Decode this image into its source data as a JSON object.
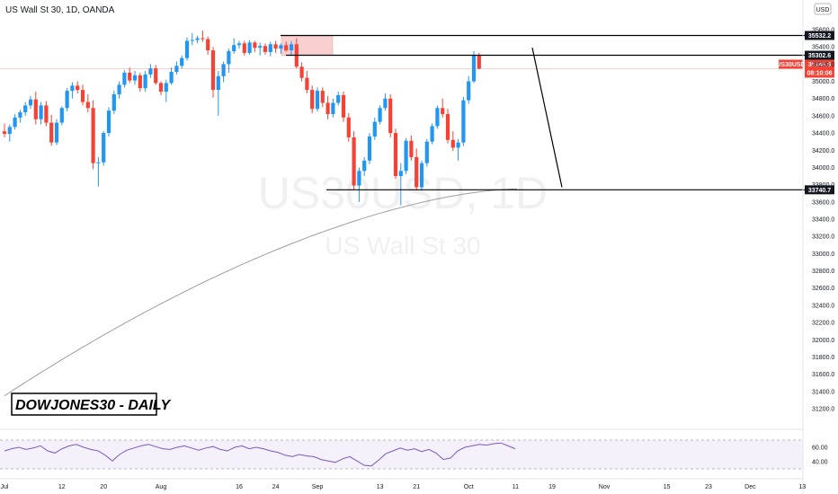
{
  "header": {
    "title": "US Wall St 30, 1D, OANDA",
    "currency": "USD"
  },
  "watermark": {
    "symbol": "US30USD, 1D",
    "name": "US Wall St 30"
  },
  "annotation": {
    "label": "DOWJONES30 - DAILY"
  },
  "colors": {
    "up": "#2196f3",
    "down": "#f44336",
    "line": "#000000",
    "sma": "#9e9e9e",
    "rsi": "#7e57c2",
    "zone": "#f8bbbb"
  },
  "chart_data": {
    "type": "candlestick",
    "y_range": [
      31000,
      35700
    ],
    "y_ticks": [
      31200,
      31400,
      31600,
      31800,
      32000,
      32200,
      32400,
      32600,
      32800,
      33000,
      33200,
      33400,
      33600,
      33800,
      34000,
      34200,
      34400,
      34600,
      34800,
      35000,
      35200,
      35400,
      35600
    ],
    "y_tick_labels": [
      "31200.0",
      "31400.0",
      "31600.0",
      "31800.0",
      "32000.0",
      "32200.0",
      "32400.0",
      "32600.0",
      "32800.0",
      "33000.0",
      "33200.0",
      "33400.0",
      "33600.0",
      "33800.0",
      "34000.0",
      "34200.0",
      "34400.0",
      "34600.0",
      "34800.0",
      "35000.0",
      "35200.0",
      "35400.0",
      "35600.0"
    ],
    "x_labels": [
      "Jul",
      "12",
      "20",
      "Aug",
      "16",
      "24",
      "Sep",
      "13",
      "21",
      "Oct",
      "11",
      "19",
      "Nov",
      "15",
      "23",
      "Dec",
      "13"
    ],
    "x_label_index": [
      0,
      11,
      19,
      30,
      45,
      52,
      60,
      72,
      79,
      89,
      98,
      105,
      115,
      127,
      135,
      143,
      153
    ],
    "ohlc": [
      [
        34420,
        34510,
        34350,
        34390
      ],
      [
        34390,
        34500,
        34300,
        34470
      ],
      [
        34470,
        34620,
        34440,
        34580
      ],
      [
        34580,
        34670,
        34520,
        34640
      ],
      [
        34640,
        34760,
        34600,
        34720
      ],
      [
        34720,
        34830,
        34680,
        34790
      ],
      [
        34790,
        34880,
        34500,
        34560
      ],
      [
        34560,
        34760,
        34500,
        34720
      ],
      [
        34720,
        34770,
        34480,
        34520
      ],
      [
        34520,
        34610,
        34250,
        34290
      ],
      [
        34290,
        34560,
        34260,
        34520
      ],
      [
        34520,
        34710,
        34490,
        34690
      ],
      [
        34690,
        34920,
        34650,
        34890
      ],
      [
        34890,
        34990,
        34800,
        34950
      ],
      [
        34950,
        35000,
        34860,
        34900
      ],
      [
        34900,
        34960,
        34720,
        34760
      ],
      [
        34760,
        34850,
        34640,
        34690
      ],
      [
        34690,
        34780,
        33980,
        34050
      ],
      [
        34050,
        34120,
        33780,
        34060
      ],
      [
        34060,
        34420,
        34020,
        34400
      ],
      [
        34400,
        34700,
        34360,
        34660
      ],
      [
        34660,
        34890,
        34620,
        34850
      ],
      [
        34850,
        35000,
        34800,
        34960
      ],
      [
        34960,
        35130,
        34930,
        35100
      ],
      [
        35100,
        35160,
        34980,
        35010
      ],
      [
        35010,
        35120,
        34960,
        35070
      ],
      [
        35070,
        35100,
        34880,
        34920
      ],
      [
        34920,
        35120,
        34880,
        35080
      ],
      [
        35080,
        35200,
        35040,
        35150
      ],
      [
        35150,
        35190,
        34960,
        34980
      ],
      [
        34980,
        35000,
        34840,
        34880
      ],
      [
        34880,
        35020,
        34760,
        34980
      ],
      [
        34980,
        35160,
        34960,
        35110
      ],
      [
        35110,
        35230,
        35080,
        35180
      ],
      [
        35180,
        35300,
        35150,
        35270
      ],
      [
        35270,
        35510,
        35240,
        35470
      ],
      [
        35470,
        35560,
        35420,
        35480
      ],
      [
        35480,
        35530,
        35440,
        35500
      ],
      [
        35500,
        35590,
        35460,
        35490
      ],
      [
        35490,
        35520,
        35310,
        35360
      ],
      [
        35360,
        35400,
        34810,
        34900
      ],
      [
        34900,
        35120,
        34600,
        35060
      ],
      [
        35060,
        35230,
        34990,
        35200
      ],
      [
        35200,
        35380,
        35100,
        35350
      ],
      [
        35350,
        35500,
        35320,
        35420
      ],
      [
        35420,
        35470,
        35380,
        35440
      ],
      [
        35440,
        35470,
        35300,
        35330
      ],
      [
        35330,
        35480,
        35310,
        35450
      ],
      [
        35450,
        35470,
        35340,
        35390
      ],
      [
        35390,
        35450,
        35300,
        35410
      ],
      [
        35410,
        35440,
        35310,
        35340
      ],
      [
        35340,
        35460,
        35290,
        35430
      ],
      [
        35430,
        35470,
        35330,
        35380
      ],
      [
        35380,
        35440,
        35320,
        35420
      ],
      [
        35420,
        35460,
        35340,
        35360
      ],
      [
        35360,
        35470,
        35300,
        35430
      ],
      [
        35430,
        35500,
        35150,
        35170
      ],
      [
        35170,
        35220,
        35000,
        35040
      ],
      [
        35040,
        35120,
        34860,
        34900
      ],
      [
        34900,
        34950,
        34630,
        34680
      ],
      [
        34680,
        34930,
        34650,
        34890
      ],
      [
        34890,
        34930,
        34700,
        34750
      ],
      [
        34750,
        34830,
        34560,
        34620
      ],
      [
        34620,
        34800,
        34580,
        34750
      ],
      [
        34750,
        34880,
        34720,
        34840
      ],
      [
        34840,
        34880,
        34530,
        34580
      ],
      [
        34580,
        34630,
        34300,
        34350
      ],
      [
        34350,
        34420,
        33740,
        33790
      ],
      [
        33790,
        34000,
        33600,
        33960
      ],
      [
        33960,
        34120,
        33900,
        34080
      ],
      [
        34080,
        34400,
        34040,
        34360
      ],
      [
        34360,
        34580,
        34320,
        34530
      ],
      [
        34530,
        34720,
        34500,
        34690
      ],
      [
        34690,
        34860,
        34660,
        34800
      ],
      [
        34800,
        34850,
        34350,
        34400
      ],
      [
        34400,
        34450,
        33870,
        33900
      ],
      [
        33900,
        34050,
        33560,
        33960
      ],
      [
        33960,
        34340,
        33920,
        34310
      ],
      [
        34310,
        34370,
        34080,
        34120
      ],
      [
        34120,
        34220,
        33740,
        33770
      ],
      [
        33770,
        34080,
        33730,
        34050
      ],
      [
        34050,
        34330,
        34010,
        34300
      ],
      [
        34300,
        34510,
        34270,
        34480
      ],
      [
        34480,
        34720,
        34450,
        34690
      ],
      [
        34690,
        34800,
        34580,
        34620
      ],
      [
        34620,
        34680,
        34280,
        34320
      ],
      [
        34320,
        34420,
        34190,
        34230
      ],
      [
        34230,
        34330,
        34080,
        34290
      ],
      [
        34290,
        34820,
        34250,
        34780
      ],
      [
        34780,
        35060,
        34740,
        35000
      ],
      [
        35000,
        35350,
        34980,
        35300
      ],
      [
        35300,
        35330,
        35140,
        35146
      ]
    ],
    "level_lines": [
      {
        "value": 35532.2,
        "label": "35532.2"
      },
      {
        "value": 35302.6,
        "label": "35302.6"
      },
      {
        "value": 33740.7,
        "label": "33740.7"
      }
    ],
    "current_price": {
      "symbol": "US30USD",
      "value": 35146.5,
      "label": "35146.5",
      "countdown": "08:10:06"
    },
    "rsi": {
      "labels": [
        "60.00",
        "40.00"
      ],
      "levels": [
        70,
        30
      ],
      "values": [
        55,
        58,
        60,
        57,
        59,
        62,
        55,
        52,
        58,
        62,
        64,
        60,
        57,
        55,
        49,
        41,
        50,
        56,
        59,
        62,
        64,
        61,
        58,
        57,
        60,
        62,
        59,
        56,
        59,
        61,
        57,
        55,
        60,
        62,
        58,
        60,
        58,
        55,
        53,
        49,
        47,
        50,
        48,
        47,
        43,
        41,
        39,
        44,
        47,
        41,
        35,
        34,
        42,
        51,
        55,
        59,
        56,
        58,
        54,
        57,
        52,
        43,
        45,
        55,
        60,
        62,
        64,
        63,
        65,
        66,
        62,
        58
      ]
    }
  }
}
